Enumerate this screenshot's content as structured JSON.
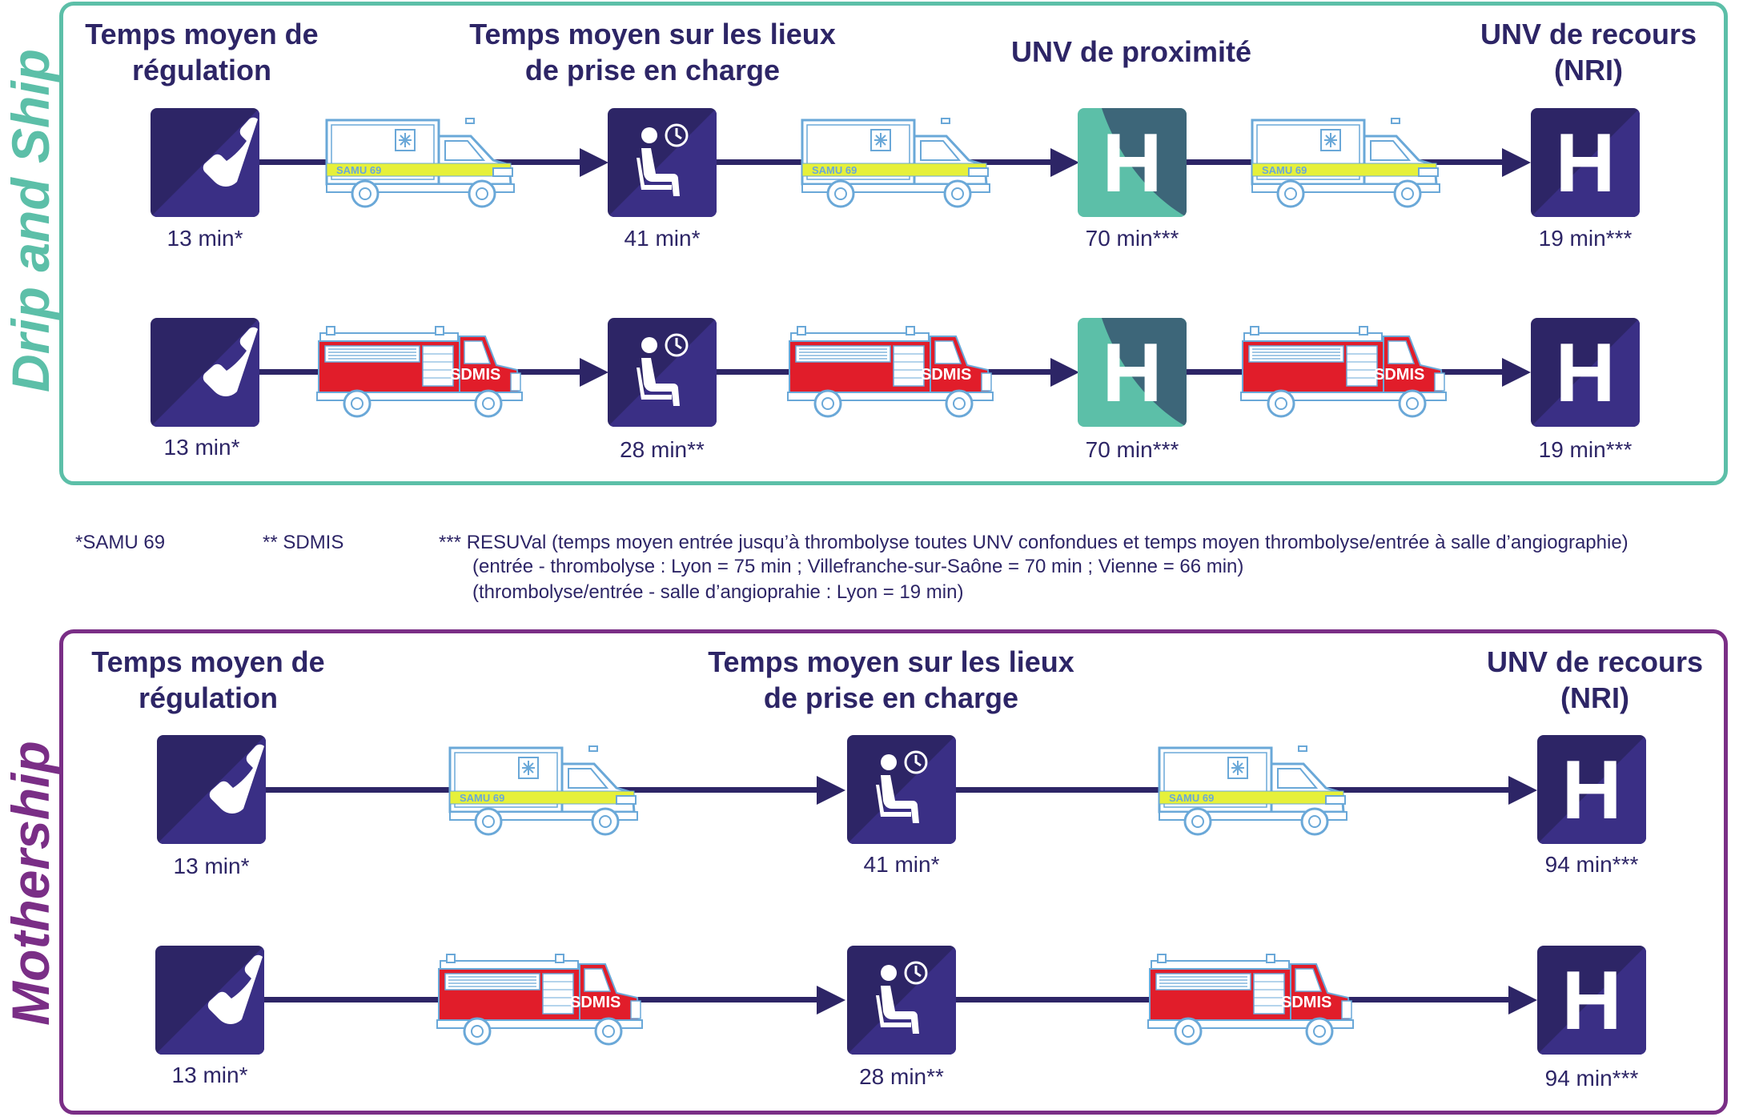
{
  "colors": {
    "navy": "#2d2566",
    "teal": "#5cbfa8",
    "purple": "#7a2e86",
    "red": "#e11d2a",
    "ambulance_stripe": "#e6f03a",
    "ambulance_outline": "#6aa8d8"
  },
  "drip": {
    "title": "Drip and Ship",
    "headers": {
      "h1a": "Temps moyen de",
      "h1b": "régulation",
      "h2a": "Temps moyen sur les lieux",
      "h2b": "de prise en charge",
      "h3": "UNV de proximité",
      "h4a": "UNV de recours",
      "h4b": "(NRI)"
    },
    "row1": {
      "t1": "13 min*",
      "t2": "41 min*",
      "t3": "70 min***",
      "t4": "19 min***"
    },
    "row2": {
      "t1": "13 min*",
      "t2": "28 min**",
      "t3": "70 min***",
      "t4": "19 min***"
    }
  },
  "mother": {
    "title": "Mothership",
    "headers": {
      "h1a": "Temps moyen de",
      "h1b": "régulation",
      "h2a": "Temps moyen sur les lieux",
      "h2b": "de prise en charge",
      "h4a": "UNV de recours",
      "h4b": "(NRI)"
    },
    "row1": {
      "t1": "13 min*",
      "t2": "41 min*",
      "t4": "94 min***"
    },
    "row2": {
      "t1": "13 min*",
      "t2": "28 min**",
      "t4": "94 min***"
    }
  },
  "vehicle_labels": {
    "ambulance": "SAMU 69",
    "firetruck": "SDMIS"
  },
  "icon_letters": {
    "hospital": "H"
  },
  "footnotes": {
    "f1": "*SAMU 69",
    "f2": "** SDMIS",
    "f3": "*** RESUVal (temps moyen entrée jusqu’à thrombolyse toutes UNV confondues et temps moyen thrombolyse/entrée à salle d’angiographie)",
    "f4": "(entrée - thrombolyse : Lyon = 75 min ; Villefranche-sur-Saône = 70 min ; Vienne = 66 min)",
    "f5": "(thrombolyse/entrée - salle d’angioprahie : Lyon = 19 min)"
  }
}
